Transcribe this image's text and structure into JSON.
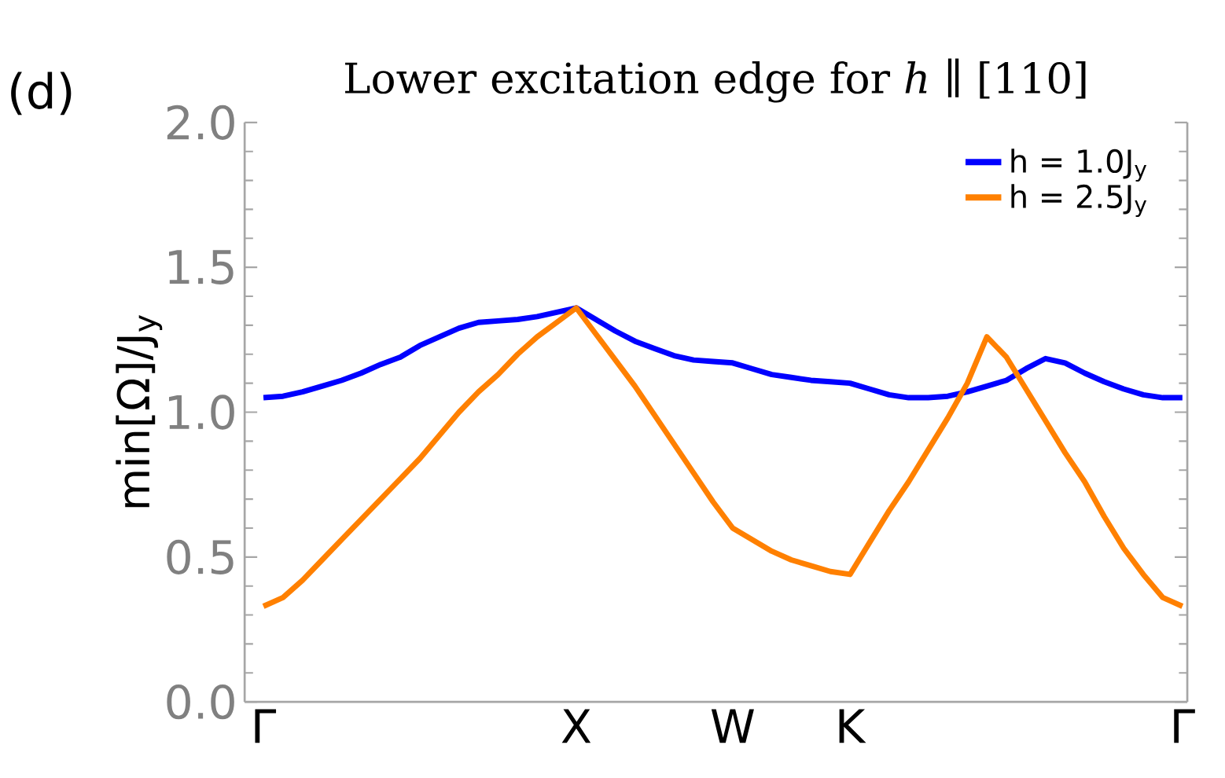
{
  "chart_data": {
    "type": "line",
    "title": "Lower excitation edge for *h* ∥ [110]",
    "ylabel": "min[Ω]/J$_{y}$",
    "annotations": [
      "(d)"
    ],
    "categories": [
      "Γ",
      null,
      null,
      null,
      null,
      null,
      null,
      null,
      null,
      null,
      null,
      null,
      null,
      null,
      null,
      null,
      "X",
      null,
      null,
      null,
      null,
      null,
      null,
      null,
      "W",
      null,
      null,
      null,
      null,
      null,
      "K",
      null,
      null,
      null,
      null,
      null,
      null,
      null,
      null,
      null,
      null,
      null,
      null,
      null,
      null,
      null,
      null,
      "Γ"
    ],
    "ylim": [
      0,
      2.0
    ],
    "yticks": [
      {
        "value": 0,
        "label": "0.0"
      },
      {
        "value": 0.5,
        "label": "0.5"
      },
      {
        "value": 1.0,
        "label": "1.0"
      },
      {
        "value": 1.5,
        "label": "1.5"
      },
      {
        "value": 2.0,
        "label": "2.0"
      }
    ],
    "grid": false,
    "legend": "top right",
    "marker": "none",
    "line_style": "solid",
    "series": [
      {
        "name": "h = 1.0J$_{y}$",
        "color": "#0000ff",
        "values": [
          1.05,
          1.055,
          1.07,
          1.09,
          1.11,
          1.135,
          1.165,
          1.19,
          1.23,
          1.26,
          1.29,
          1.31,
          1.315,
          1.32,
          1.33,
          1.345,
          1.36,
          1.32,
          1.28,
          1.245,
          1.22,
          1.195,
          1.18,
          1.175,
          1.17,
          1.15,
          1.13,
          1.12,
          1.11,
          1.105,
          1.1,
          1.08,
          1.06,
          1.05,
          1.05,
          1.055,
          1.07,
          1.09,
          1.11,
          1.15,
          1.185,
          1.17,
          1.135,
          1.105,
          1.08,
          1.06,
          1.05,
          1.05
        ]
      },
      {
        "name": "h = 2.5J$_{y}$",
        "color": "#ff8000",
        "values": [
          0.33,
          0.36,
          0.42,
          0.49,
          0.56,
          0.63,
          0.7,
          0.77,
          0.84,
          0.92,
          1.0,
          1.07,
          1.13,
          1.2,
          1.26,
          1.31,
          1.36,
          1.27,
          1.18,
          1.09,
          0.99,
          0.89,
          0.79,
          0.69,
          0.6,
          0.56,
          0.52,
          0.49,
          0.47,
          0.45,
          0.44,
          0.55,
          0.66,
          0.76,
          0.87,
          0.98,
          1.1,
          1.26,
          1.19,
          1.08,
          0.97,
          0.86,
          0.76,
          0.64,
          0.53,
          0.44,
          0.36,
          0.33
        ]
      }
    ]
  }
}
